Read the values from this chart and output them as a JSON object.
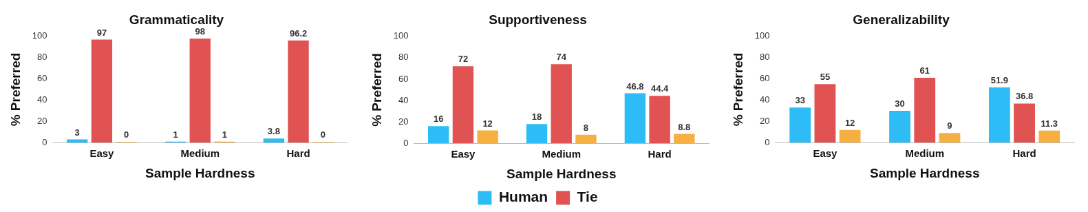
{
  "chart_data": [
    {
      "type": "bar",
      "title": "Grammaticality",
      "xlabel": "Sample Hardness",
      "ylabel": "% Preferred",
      "categories": [
        "Easy",
        "Medium",
        "Hard"
      ],
      "series": [
        {
          "color": "#2ebcf6",
          "values": [
            3,
            1,
            3.8
          ]
        },
        {
          "color": "#e15253",
          "values": [
            97,
            98,
            96.2
          ]
        },
        {
          "color": "#f5b041",
          "values": [
            0,
            1,
            0
          ]
        }
      ],
      "ylim": [
        0,
        100
      ],
      "yticks": [
        0,
        20,
        40,
        60,
        80,
        100
      ],
      "grid": false,
      "legend": false,
      "data_labels": true
    },
    {
      "type": "bar",
      "title": "Supportiveness",
      "xlabel": "Sample Hardness",
      "ylabel": "% Preferred",
      "categories": [
        "Easy",
        "Medium",
        "Hard"
      ],
      "series": [
        {
          "name": "Human",
          "color": "#2ebcf6",
          "values": [
            16,
            18,
            46.8
          ]
        },
        {
          "name": "Tie",
          "color": "#e15253",
          "values": [
            72,
            74,
            44.4
          ]
        },
        {
          "color": "#f5b041",
          "values": [
            12,
            8,
            8.8
          ]
        }
      ],
      "ylim": [
        0,
        100
      ],
      "yticks": [
        0,
        20,
        40,
        60,
        80,
        100
      ],
      "grid": false,
      "legend": "bottom",
      "data_labels": true
    },
    {
      "type": "bar",
      "title": "Generalizability",
      "xlabel": "Sample Hardness",
      "ylabel": "% Preferred",
      "categories": [
        "Easy",
        "Medium",
        "Hard"
      ],
      "series": [
        {
          "color": "#2ebcf6",
          "values": [
            33,
            30,
            51.9
          ]
        },
        {
          "color": "#e15253",
          "values": [
            55,
            61,
            36.8
          ]
        },
        {
          "color": "#f5b041",
          "values": [
            12,
            9,
            11.3
          ]
        }
      ],
      "ylim": [
        0,
        100
      ],
      "yticks": [
        0,
        20,
        40,
        60,
        80,
        100
      ],
      "grid": false,
      "legend": false,
      "data_labels": true
    }
  ]
}
